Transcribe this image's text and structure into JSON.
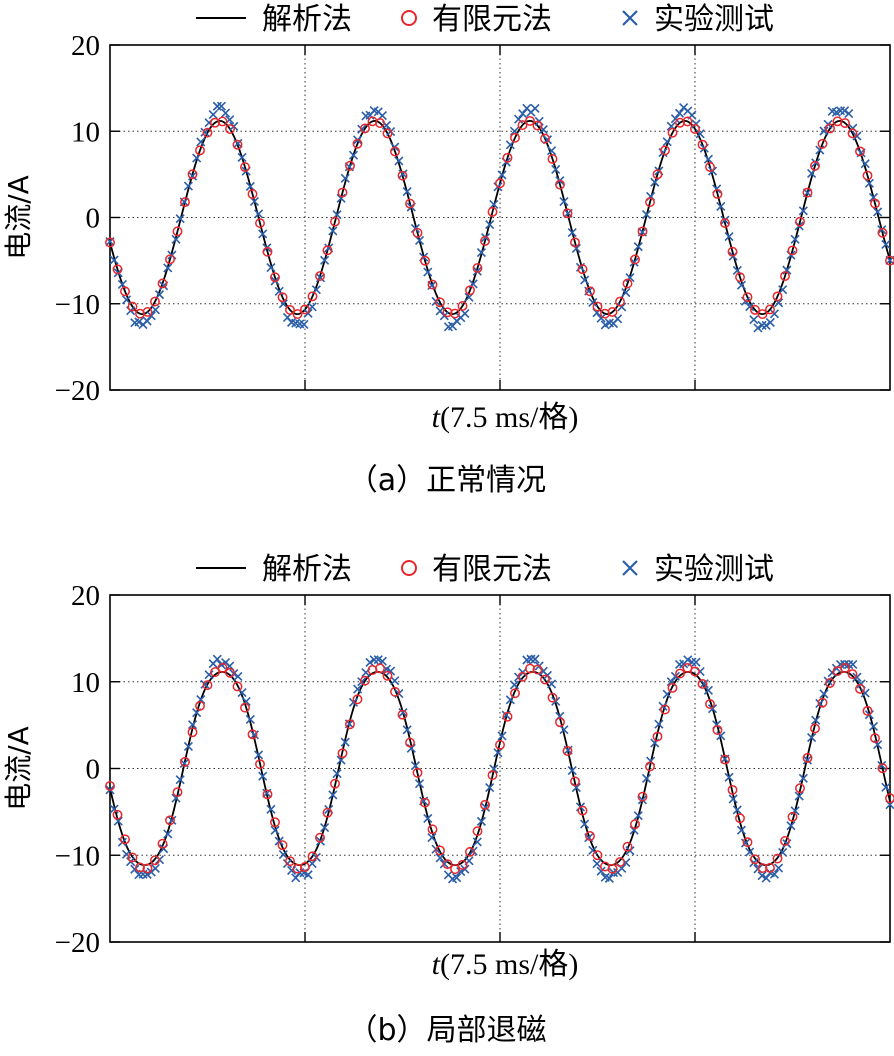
{
  "legend": {
    "entries": [
      {
        "name": "解析法",
        "marker": "line",
        "color": "#000000"
      },
      {
        "name": "有限元法",
        "marker": "circle",
        "color": "#e8272c"
      },
      {
        "name": "实验测试",
        "marker": "x",
        "color": "#2b5ea8"
      }
    ]
  },
  "chart_data": [
    {
      "type": "line",
      "caption": "（a）正常情况",
      "xlabel_italic": "t",
      "xlabel_rest": "(7.5 ms/格)",
      "ylabel": "电流/A",
      "ylim": [
        -20,
        20
      ],
      "yticks": [
        -20,
        -10,
        0,
        10,
        20
      ],
      "ytick_labels": [
        "−20",
        "−10",
        "0",
        "10",
        "20"
      ],
      "xlim_divisions": [
        0,
        4
      ],
      "grid": true,
      "x_unit_per_division_ms": 7.5,
      "series": [
        {
          "name": "解析法",
          "kind": "analytical",
          "amplitude": 11.2,
          "periods_per_division": 1.258,
          "phase_deg": 195,
          "distortion": 0.0
        },
        {
          "name": "有限元法",
          "kind": "fem",
          "amplitude": 11.2,
          "periods_per_division": 1.258,
          "phase_deg": 195,
          "samples": 105
        },
        {
          "name": "实验测试",
          "kind": "test",
          "amplitude": 12.6,
          "periods_per_division": 1.258,
          "phase_deg": 195,
          "samples": 190
        }
      ]
    },
    {
      "type": "line",
      "caption": "（b）局部退磁",
      "xlabel_italic": "t",
      "xlabel_rest": "(7.5 ms/格)",
      "ylabel": "电流/A",
      "ylim": [
        -20,
        20
      ],
      "yticks": [
        -20,
        -10,
        0,
        10,
        20
      ],
      "ytick_labels": [
        "−20",
        "−10",
        "0",
        "10",
        "20"
      ],
      "xlim_divisions": [
        0,
        4
      ],
      "grid": true,
      "x_unit_per_division_ms": 7.5,
      "series": [
        {
          "name": "解析法",
          "kind": "analytical",
          "amplitude": 11.6,
          "periods_per_division": 1.255,
          "phase_deg": 190,
          "distortion": 0.04
        },
        {
          "name": "有限元法",
          "kind": "fem",
          "amplitude": 11.6,
          "periods_per_division": 1.255,
          "phase_deg": 190,
          "samples": 105
        },
        {
          "name": "实验测试",
          "kind": "test",
          "amplitude": 13.0,
          "periods_per_division": 1.255,
          "phase_deg": 190,
          "samples": 190
        }
      ]
    }
  ]
}
